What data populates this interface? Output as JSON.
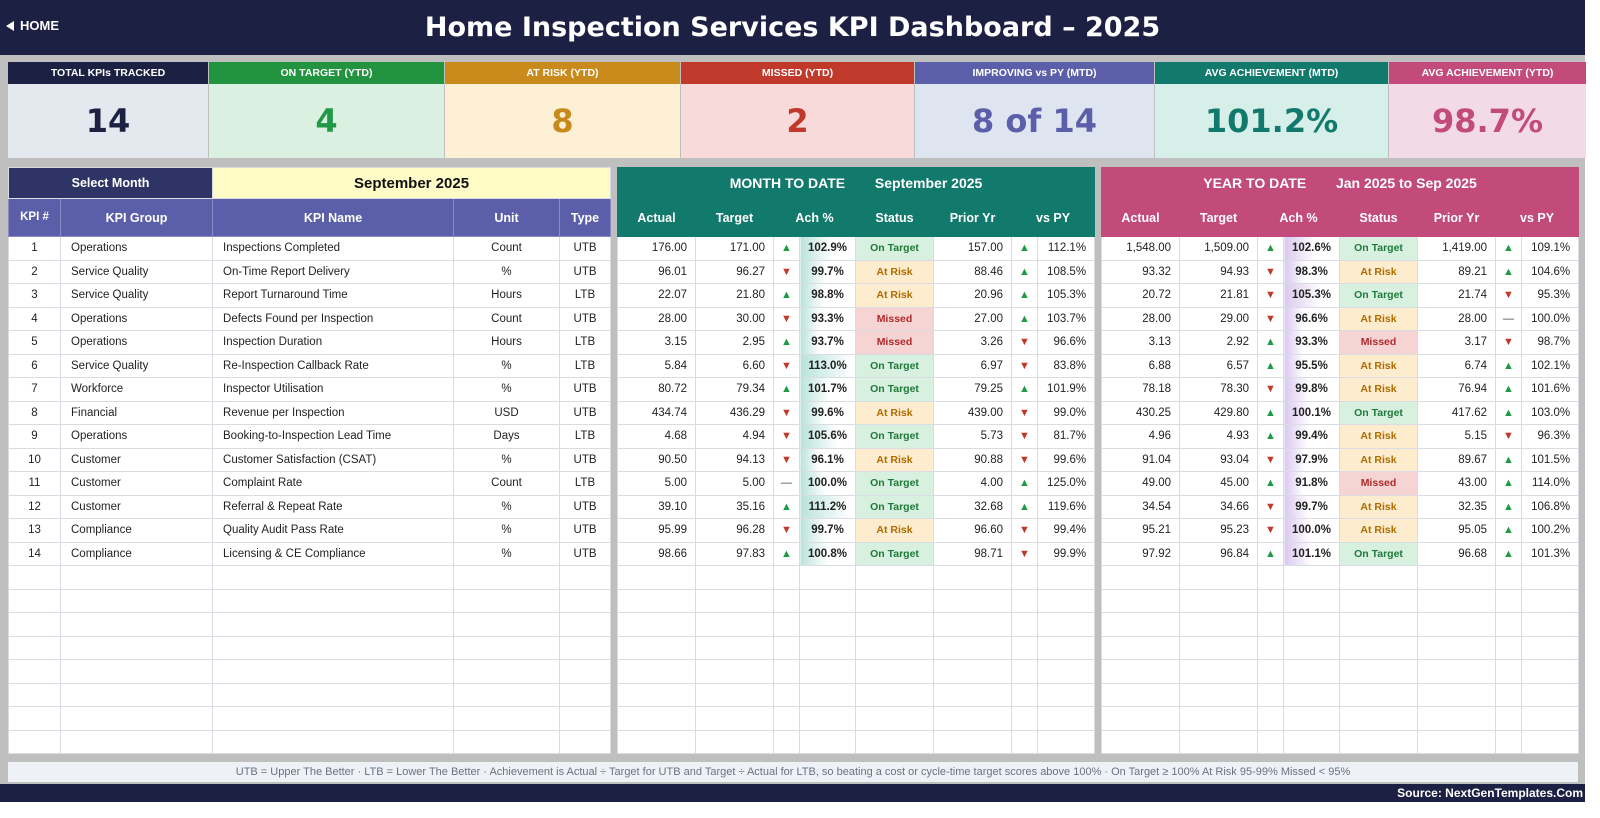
{
  "header": {
    "home_label": "HOME",
    "title": "Home Inspection Services KPI Dashboard   –   2025"
  },
  "cards": [
    {
      "label": "TOTAL KPIs TRACKED",
      "value": "14",
      "head": "#1c2143",
      "bg": "#e4e8ef",
      "fg": "#1c2143"
    },
    {
      "label": "ON TARGET (YTD)",
      "value": "4",
      "head": "#22933f",
      "bg": "#dbf0e0",
      "fg": "#1f9a47"
    },
    {
      "label": "AT RISK (YTD)",
      "value": "8",
      "head": "#c98a1c",
      "bg": "#fdf0d4",
      "fg": "#c98a1c"
    },
    {
      "label": "MISSED (YTD)",
      "value": "2",
      "head": "#c0392b",
      "bg": "#f9dada",
      "fg": "#c0392b"
    },
    {
      "label": "IMPROVING vs PY (MTD)",
      "value": "8 of 14",
      "head": "#5b5ea8",
      "bg": "#dfe5f0",
      "fg": "#5b5ea8"
    },
    {
      "label": "AVG ACHIEVEMENT (MTD)",
      "value": "101.2%",
      "head": "#127a6c",
      "bg": "#d7efe9",
      "fg": "#127a6c"
    },
    {
      "label": "AVG ACHIEVEMENT (YTD)",
      "value": "98.7%",
      "head": "#c24b7c",
      "bg": "#f2dbe6",
      "fg": "#c24b7c"
    }
  ],
  "left": {
    "select_label": "Select Month",
    "month": "September 2025",
    "cols": [
      "KPI #",
      "KPI Group",
      "KPI Name",
      "Unit",
      "Type"
    ]
  },
  "mtd": {
    "title": "MONTH TO DATE",
    "period": "September 2025",
    "cols": [
      "Actual",
      "Target",
      "Ach %",
      "Status",
      "Prior Yr",
      "vs PY"
    ]
  },
  "ytd": {
    "title": "YEAR TO DATE",
    "period": "Jan 2025  to  Sep 2025",
    "cols": [
      "Actual",
      "Target",
      "Ach %",
      "Status",
      "Prior Yr",
      "vs PY"
    ]
  },
  "rows": [
    {
      "n": "1",
      "group": "Operations",
      "name": "Inspections Completed",
      "unit": "Count",
      "type": "UTB",
      "m": {
        "a": "176.00",
        "t": "171.00",
        "ad": "up",
        "ach": "102.9%",
        "s": "On Target",
        "py": "157.00",
        "pd": "up",
        "vs": "112.1%"
      },
      "y": {
        "a": "1,548.00",
        "t": "1,509.00",
        "ad": "up",
        "ach": "102.6%",
        "s": "On Target",
        "py": "1,419.00",
        "pd": "up",
        "vs": "109.1%"
      }
    },
    {
      "n": "2",
      "group": "Service Quality",
      "name": "On-Time Report Delivery",
      "unit": "%",
      "type": "UTB",
      "m": {
        "a": "96.01",
        "t": "96.27",
        "ad": "dn",
        "ach": "99.7%",
        "s": "At Risk",
        "py": "88.46",
        "pd": "up",
        "vs": "108.5%"
      },
      "y": {
        "a": "93.32",
        "t": "94.93",
        "ad": "dn",
        "ach": "98.3%",
        "s": "At Risk",
        "py": "89.21",
        "pd": "up",
        "vs": "104.6%"
      }
    },
    {
      "n": "3",
      "group": "Service Quality",
      "name": "Report Turnaround Time",
      "unit": "Hours",
      "type": "LTB",
      "m": {
        "a": "22.07",
        "t": "21.80",
        "ad": "up",
        "ach": "98.8%",
        "s": "At Risk",
        "py": "20.96",
        "pd": "up",
        "vs": "105.3%"
      },
      "y": {
        "a": "20.72",
        "t": "21.81",
        "ad": "dn",
        "ach": "105.3%",
        "s": "On Target",
        "py": "21.74",
        "pd": "dn",
        "vs": "95.3%"
      }
    },
    {
      "n": "4",
      "group": "Operations",
      "name": "Defects Found per Inspection",
      "unit": "Count",
      "type": "UTB",
      "m": {
        "a": "28.00",
        "t": "30.00",
        "ad": "dn",
        "ach": "93.3%",
        "s": "Missed",
        "py": "27.00",
        "pd": "up",
        "vs": "103.7%"
      },
      "y": {
        "a": "28.00",
        "t": "29.00",
        "ad": "dn",
        "ach": "96.6%",
        "s": "At Risk",
        "py": "28.00",
        "pd": "flat",
        "vs": "100.0%"
      }
    },
    {
      "n": "5",
      "group": "Operations",
      "name": "Inspection Duration",
      "unit": "Hours",
      "type": "LTB",
      "m": {
        "a": "3.15",
        "t": "2.95",
        "ad": "up",
        "ach": "93.7%",
        "s": "Missed",
        "py": "3.26",
        "pd": "dn",
        "vs": "96.6%"
      },
      "y": {
        "a": "3.13",
        "t": "2.92",
        "ad": "up",
        "ach": "93.3%",
        "s": "Missed",
        "py": "3.17",
        "pd": "dn",
        "vs": "98.7%"
      }
    },
    {
      "n": "6",
      "group": "Service Quality",
      "name": "Re-Inspection Callback Rate",
      "unit": "%",
      "type": "LTB",
      "m": {
        "a": "5.84",
        "t": "6.60",
        "ad": "dn",
        "ach": "113.0%",
        "s": "On Target",
        "py": "6.97",
        "pd": "dn",
        "vs": "83.8%"
      },
      "y": {
        "a": "6.88",
        "t": "6.57",
        "ad": "up",
        "ach": "95.5%",
        "s": "At Risk",
        "py": "6.74",
        "pd": "up",
        "vs": "102.1%"
      }
    },
    {
      "n": "7",
      "group": "Workforce",
      "name": "Inspector Utilisation",
      "unit": "%",
      "type": "UTB",
      "m": {
        "a": "80.72",
        "t": "79.34",
        "ad": "up",
        "ach": "101.7%",
        "s": "On Target",
        "py": "79.25",
        "pd": "up",
        "vs": "101.9%"
      },
      "y": {
        "a": "78.18",
        "t": "78.30",
        "ad": "dn",
        "ach": "99.8%",
        "s": "At Risk",
        "py": "76.94",
        "pd": "up",
        "vs": "101.6%"
      }
    },
    {
      "n": "8",
      "group": "Financial",
      "name": "Revenue per Inspection",
      "unit": "USD",
      "type": "UTB",
      "m": {
        "a": "434.74",
        "t": "436.29",
        "ad": "dn",
        "ach": "99.6%",
        "s": "At Risk",
        "py": "439.00",
        "pd": "dn",
        "vs": "99.0%"
      },
      "y": {
        "a": "430.25",
        "t": "429.80",
        "ad": "up",
        "ach": "100.1%",
        "s": "On Target",
        "py": "417.62",
        "pd": "up",
        "vs": "103.0%"
      }
    },
    {
      "n": "9",
      "group": "Operations",
      "name": "Booking-to-Inspection Lead Time",
      "unit": "Days",
      "type": "LTB",
      "m": {
        "a": "4.68",
        "t": "4.94",
        "ad": "dn",
        "ach": "105.6%",
        "s": "On Target",
        "py": "5.73",
        "pd": "dn",
        "vs": "81.7%"
      },
      "y": {
        "a": "4.96",
        "t": "4.93",
        "ad": "up",
        "ach": "99.4%",
        "s": "At Risk",
        "py": "5.15",
        "pd": "dn",
        "vs": "96.3%"
      }
    },
    {
      "n": "10",
      "group": "Customer",
      "name": "Customer Satisfaction (CSAT)",
      "unit": "%",
      "type": "UTB",
      "m": {
        "a": "90.50",
        "t": "94.13",
        "ad": "dn",
        "ach": "96.1%",
        "s": "At Risk",
        "py": "90.88",
        "pd": "dn",
        "vs": "99.6%"
      },
      "y": {
        "a": "91.04",
        "t": "93.04",
        "ad": "dn",
        "ach": "97.9%",
        "s": "At Risk",
        "py": "89.67",
        "pd": "up",
        "vs": "101.5%"
      }
    },
    {
      "n": "11",
      "group": "Customer",
      "name": "Complaint Rate",
      "unit": "Count",
      "type": "LTB",
      "m": {
        "a": "5.00",
        "t": "5.00",
        "ad": "flat",
        "ach": "100.0%",
        "s": "On Target",
        "py": "4.00",
        "pd": "up",
        "vs": "125.0%"
      },
      "y": {
        "a": "49.00",
        "t": "45.00",
        "ad": "up",
        "ach": "91.8%",
        "s": "Missed",
        "py": "43.00",
        "pd": "up",
        "vs": "114.0%"
      }
    },
    {
      "n": "12",
      "group": "Customer",
      "name": "Referral & Repeat Rate",
      "unit": "%",
      "type": "UTB",
      "m": {
        "a": "39.10",
        "t": "35.16",
        "ad": "up",
        "ach": "111.2%",
        "s": "On Target",
        "py": "32.68",
        "pd": "up",
        "vs": "119.6%"
      },
      "y": {
        "a": "34.54",
        "t": "34.66",
        "ad": "dn",
        "ach": "99.7%",
        "s": "At Risk",
        "py": "32.35",
        "pd": "up",
        "vs": "106.8%"
      }
    },
    {
      "n": "13",
      "group": "Compliance",
      "name": "Quality Audit Pass Rate",
      "unit": "%",
      "type": "UTB",
      "m": {
        "a": "95.99",
        "t": "96.28",
        "ad": "dn",
        "ach": "99.7%",
        "s": "At Risk",
        "py": "96.60",
        "pd": "dn",
        "vs": "99.4%"
      },
      "y": {
        "a": "95.21",
        "t": "95.23",
        "ad": "dn",
        "ach": "100.0%",
        "s": "At Risk",
        "py": "95.05",
        "pd": "up",
        "vs": "100.2%"
      }
    },
    {
      "n": "14",
      "group": "Compliance",
      "name": "Licensing & CE Compliance",
      "unit": "%",
      "type": "UTB",
      "m": {
        "a": "98.66",
        "t": "97.83",
        "ad": "up",
        "ach": "100.8%",
        "s": "On Target",
        "py": "98.71",
        "pd": "dn",
        "vs": "99.9%"
      },
      "y": {
        "a": "97.92",
        "t": "96.84",
        "ad": "up",
        "ach": "101.1%",
        "s": "On Target",
        "py": "96.68",
        "pd": "up",
        "vs": "101.3%"
      }
    }
  ],
  "empty_rows": 8,
  "note": "UTB = Upper The Better   ·   LTB = Lower The Better   ·   Achievement is Actual ÷ Target for UTB and Target ÷ Actual for LTB, so beating a cost or cycle-time target scores above 100%   ·   On Target ≥ 100%    At Risk 95-99%    Missed < 95%",
  "source": "Source: NextGenTemplates.Com",
  "icons": {
    "up": "triangle-up-icon",
    "dn": "triangle-down-icon",
    "flat": "dash-icon",
    "home": "triangle-left-icon"
  }
}
